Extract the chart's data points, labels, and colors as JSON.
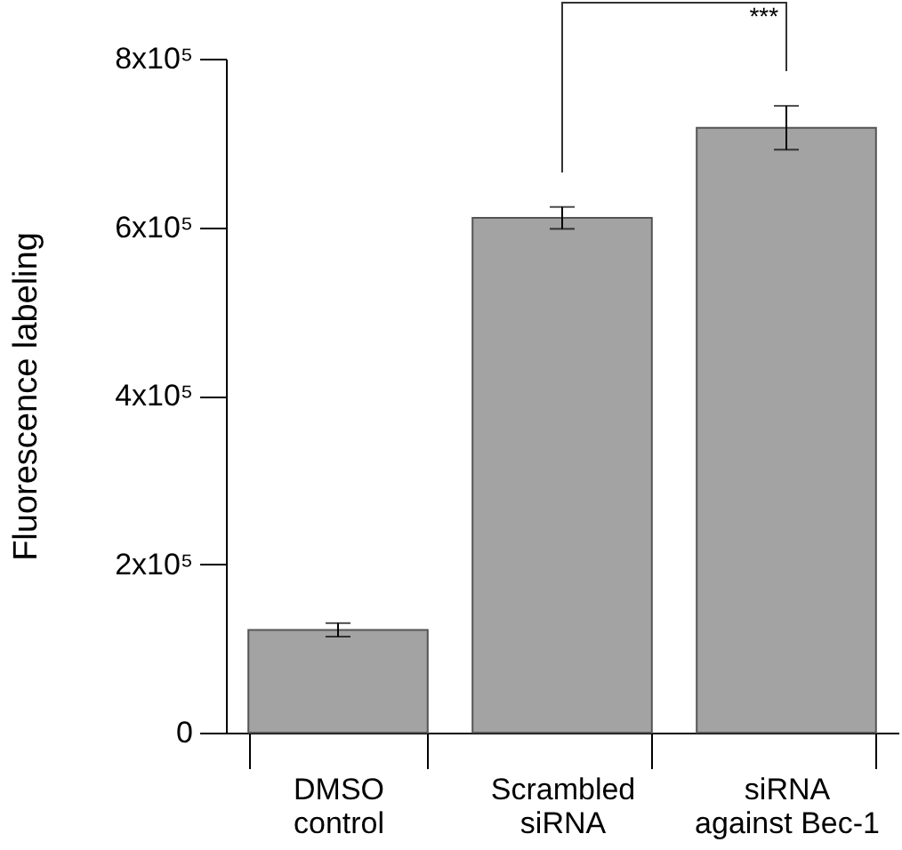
{
  "chart_data": {
    "type": "bar",
    "ylabel": "Fluorescence labeling",
    "categories": [
      "DMSO control",
      "Scrambled siRNA",
      "siRNA against Bec-1"
    ],
    "values": [
      122000,
      611000,
      718000
    ],
    "errors": [
      8000,
      13000,
      26000
    ],
    "color": "#a3a3a3",
    "ylim": [
      0,
      800000
    ],
    "yticks": [
      0,
      {
        "value": 200000,
        "label": "2x10⁵"
      },
      {
        "value": 400000,
        "label": "4x10⁵"
      },
      {
        "value": 600000,
        "label": "6x10⁵"
      },
      {
        "value": 800000,
        "label": "8x10⁵"
      }
    ],
    "grid": false,
    "annotations": [
      "***"
    ]
  }
}
